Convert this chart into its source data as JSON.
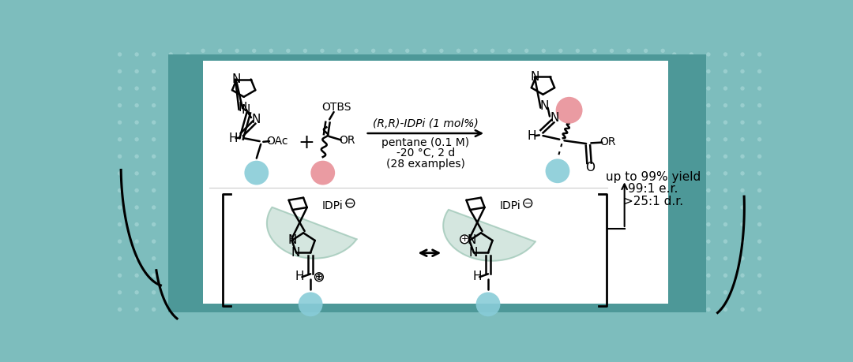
{
  "bg_outer": "#7dbdbd",
  "bg_panel": "#4d9898",
  "bg_white": "#ffffff",
  "dot_color": "#9dd0d0",
  "blue_circle_color": "#88ccd8",
  "pink_circle_color": "#e89098",
  "green_shade": "#a0c8b8",
  "text_color": "#222222",
  "arrow_color": "#222222",
  "reaction_label": "(R,R)-IDPi (1 mol%)",
  "cond1": "pentane (0.1 M)",
  "cond2": "-20 °C, 2 d",
  "cond3": "(28 examples)",
  "res1": "up to 99% yield",
  "res2": "99:1 e.r.",
  "res3": ">25:1 d.r."
}
